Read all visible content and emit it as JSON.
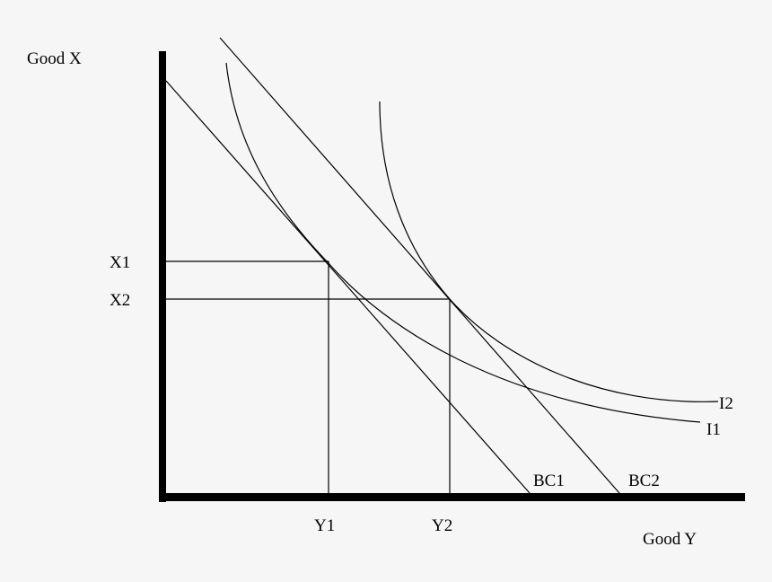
{
  "diagram": {
    "y_axis_label": "Good X",
    "x_axis_label": "Good Y",
    "x_levels": [
      "X1",
      "X2"
    ],
    "y_levels": [
      "Y1",
      "Y2"
    ],
    "budget_constraints": [
      "BC1",
      "BC2"
    ],
    "indifference_curves": [
      "I1",
      "I2"
    ],
    "line_color": "#000000",
    "background": "#f6f6f6"
  }
}
